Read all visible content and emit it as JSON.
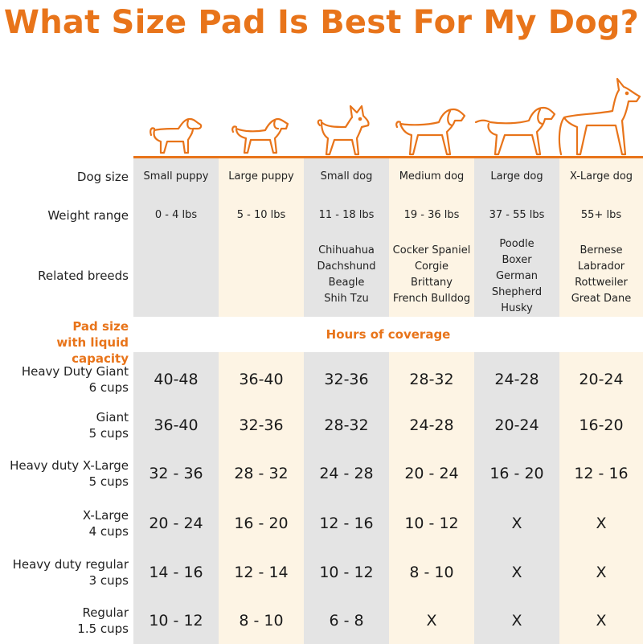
{
  "title": "What Size Pad Is Best For My Dog?",
  "labels": {
    "dog_size": "Dog size",
    "weight_range": "Weight range",
    "related_breeds": "Related breeds",
    "pad_size_line1": "Pad size",
    "pad_size_line2": "with liquid capacity",
    "hours_of_coverage": "Hours of coverage"
  },
  "dogs": [
    {
      "size": "Small puppy",
      "weight": "0 - 4 lbs",
      "breeds": [],
      "icon": "small-puppy-icon"
    },
    {
      "size": "Large puppy",
      "weight": "5 - 10 lbs",
      "breeds": [],
      "icon": "large-puppy-icon"
    },
    {
      "size": "Small dog",
      "weight": "11 - 18 lbs",
      "breeds": [
        "Chihuahua",
        "Dachshund",
        "Beagle",
        "Shih Tzu"
      ],
      "icon": "small-dog-icon"
    },
    {
      "size": "Medium dog",
      "weight": "19 - 36 lbs",
      "breeds": [
        "Cocker Spaniel",
        "Corgie",
        "Brittany",
        "French Bulldog"
      ],
      "icon": "medium-dog-icon"
    },
    {
      "size": "Large dog",
      "weight": "37 - 55 lbs",
      "breeds": [
        "Poodle",
        "Boxer",
        "German",
        "Shepherd",
        "Husky"
      ],
      "icon": "large-dog-icon"
    },
    {
      "size": "X-Large dog",
      "weight": "55+ lbs",
      "breeds": [
        "Bernese",
        "Labrador",
        "Rottweiler",
        "Great Dane"
      ],
      "icon": "xlarge-dog-icon"
    }
  ],
  "pads": [
    {
      "name": "Heavy Duty Giant",
      "capacity": "6 cups",
      "hours": [
        "40-48",
        "36-40",
        "32-36",
        "28-32",
        "24-28",
        "20-24"
      ]
    },
    {
      "name": "Giant",
      "capacity": "5 cups",
      "hours": [
        "36-40",
        "32-36",
        "28-32",
        "24-28",
        "20-24",
        "16-20"
      ]
    },
    {
      "name": "Heavy duty X-Large",
      "capacity": "5 cups",
      "hours": [
        "32 - 36",
        "28 - 32",
        "24 - 28",
        "20 - 24",
        "16 - 20",
        "12 - 16"
      ]
    },
    {
      "name": "X-Large",
      "capacity": "4 cups",
      "hours": [
        "20 - 24",
        "16 - 20",
        "12 - 16",
        "10 - 12",
        "X",
        "X"
      ]
    },
    {
      "name": "Heavy duty regular",
      "capacity": "3 cups",
      "hours": [
        "14 - 16",
        "12 - 14",
        "10 - 12",
        "8 - 10",
        "X",
        "X"
      ]
    },
    {
      "name": "Regular",
      "capacity": "1.5 cups",
      "hours": [
        "10 - 12",
        "8 - 10",
        "6 - 8",
        "X",
        "X",
        "X"
      ]
    }
  ],
  "colors": {
    "accent": "#e8741a",
    "gray_column": "#e4e4e4",
    "cream_column": "#fdf4e4"
  }
}
